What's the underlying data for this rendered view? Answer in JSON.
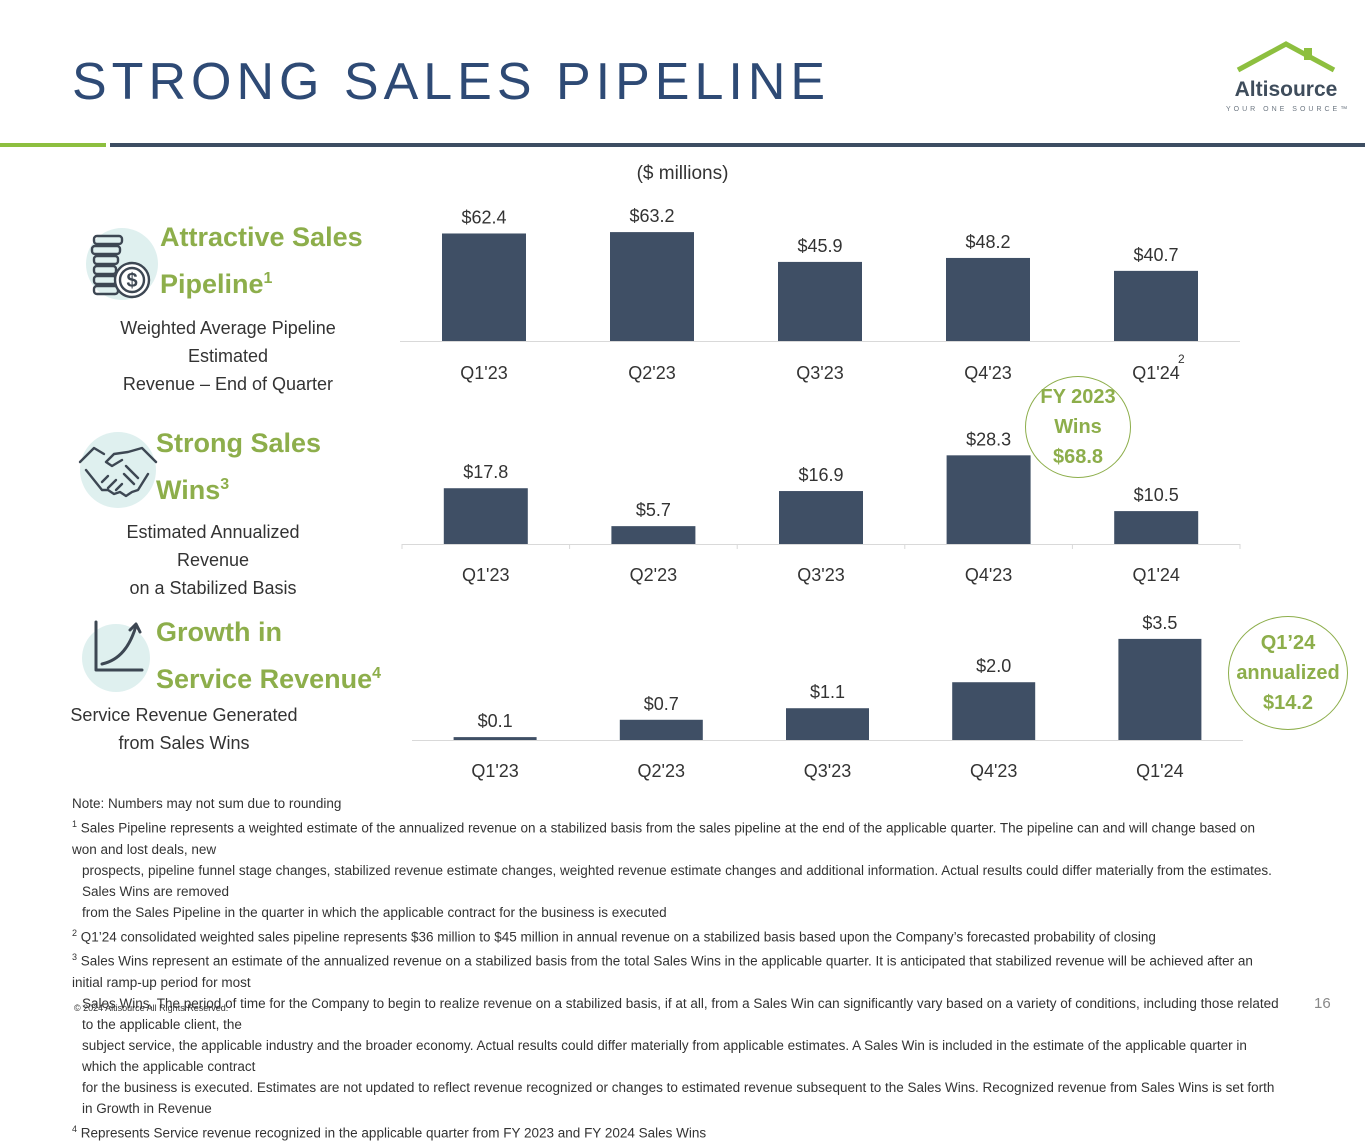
{
  "header": {
    "title": "STRONG SALES PIPELINE",
    "logo_text": "Altisource",
    "logo_tagline": "YOUR ONE SOURCE™"
  },
  "units_label": "($ millions)",
  "sections": [
    {
      "heading_line1": "Attractive Sales",
      "heading_line2": "Pipeline",
      "heading_sup": "1",
      "desc_line1": "Weighted Average Pipeline Estimated",
      "desc_line2": "Revenue – End of Quarter",
      "icon": "money-coins-icon"
    },
    {
      "heading_line1": "Strong Sales",
      "heading_line2": "Wins",
      "heading_sup": "3",
      "desc_line1": "Estimated Annualized Revenue",
      "desc_line2": "on a Stabilized Basis",
      "icon": "handshake-icon"
    },
    {
      "heading_line1": "Growth in",
      "heading_line2": "Service Revenue",
      "heading_sup": "4",
      "desc_line1": "Service Revenue Generated",
      "desc_line2": "from Sales Wins",
      "icon": "growth-chart-icon"
    }
  ],
  "chart_data": [
    {
      "type": "bar",
      "title": "Attractive Sales Pipeline",
      "categories": [
        "Q1'23",
        "Q2'23",
        "Q3'23",
        "Q4'23",
        "Q1'24"
      ],
      "values": [
        62.4,
        63.2,
        45.9,
        48.2,
        40.7
      ],
      "labels": [
        "$62.4",
        "$63.2",
        "$45.9",
        "$48.2",
        "$40.7"
      ],
      "ylabel": "$ millions",
      "ylim": [
        0,
        65
      ],
      "category_note": "2"
    },
    {
      "type": "bar",
      "title": "Strong Sales Wins",
      "categories": [
        "Q1'23",
        "Q2'23",
        "Q3'23",
        "Q4'23",
        "Q1'24"
      ],
      "values": [
        17.8,
        5.7,
        16.9,
        28.3,
        10.5
      ],
      "labels": [
        "$17.8",
        "$5.7",
        "$16.9",
        "$28.3",
        "$10.5"
      ],
      "ylabel": "$ millions",
      "ylim": [
        0,
        30
      ]
    },
    {
      "type": "bar",
      "title": "Growth in Service Revenue",
      "categories": [
        "Q1'23",
        "Q2'23",
        "Q3'23",
        "Q4'23",
        "Q1'24"
      ],
      "values": [
        0.1,
        0.7,
        1.1,
        2.0,
        3.5
      ],
      "labels": [
        "$0.1",
        "$0.7",
        "$1.1",
        "$2.0",
        "$3.5"
      ],
      "ylabel": "$ millions",
      "ylim": [
        0,
        3.6
      ]
    }
  ],
  "callouts": {
    "fy2023": {
      "line1": "FY 2023",
      "line2": "Wins",
      "line3": "$68.8"
    },
    "q124": {
      "line1": "Q1’24",
      "line2": "annualized",
      "line3": "$14.2"
    }
  },
  "notes": {
    "rounding": "Note: Numbers may not sum due to rounding",
    "n1_sup": "1",
    "n1_line1": " Sales Pipeline represents a weighted estimate of the annualized revenue on a stabilized basis from the sales pipeline at the end of the applicable quarter. The pipeline can and will change based on won and lost deals, new",
    "n1_line2": "prospects, pipeline funnel stage changes, stabilized revenue estimate changes, weighted revenue estimate changes and additional information. Actual results could differ materially from the estimates. Sales Wins are removed",
    "n1_line3": "from the Sales Pipeline in the quarter in which the applicable contract for the business is executed",
    "n2_sup": "2",
    "n2_line1": " Q1’24 consolidated weighted sales pipeline represents $36 million to $45 million in annual revenue on a stabilized basis based upon the Company’s forecasted probability of closing",
    "n3_sup": "3",
    "n3_line1": " Sales Wins represent an estimate of the annualized revenue on a stabilized basis from the total Sales Wins in the applicable quarter. It is anticipated that stabilized revenue will be achieved after an initial ramp-up period for most",
    "n3_line2": "Sales Wins. The period of time for the Company to begin to realize revenue on a stabilized basis, if at all, from a Sales Win can significantly vary based on a variety of conditions, including those related to the applicable client, the",
    "n3_line3": "subject service, the applicable industry and the broader economy. Actual results could differ materially from applicable estimates. A Sales Win is included in the estimate of the applicable quarter in which the applicable contract",
    "n3_line4": "for the business is executed. Estimates are not updated to reflect revenue recognized or changes to estimated revenue subsequent to the Sales Wins. Recognized revenue from Sales Wins is set forth in Growth in Revenue",
    "n4_sup": "4",
    "n4_line1": " Represents Service revenue recognized in the applicable quarter from FY 2023 and FY 2024 Sales Wins"
  },
  "footer": {
    "copyright": "© 2024 Altisource All Rights Reserved.",
    "page_number": "16"
  },
  "colors": {
    "title": "#2e4a75",
    "bar": "#3f4f65",
    "accent_green": "#8dae4b",
    "rule_navy": "#3d4d62"
  }
}
